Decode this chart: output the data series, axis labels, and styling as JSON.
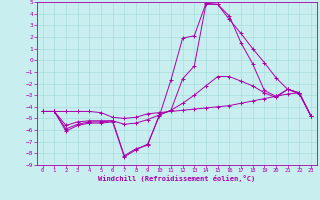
{
  "xlabel": "Windchill (Refroidissement éolien,°C)",
  "background_color": "#c8eef0",
  "grid_color": "#aadddd",
  "line_color": "#aa00aa",
  "xlim": [
    -0.5,
    23.5
  ],
  "ylim": [
    -9,
    5
  ],
  "xticks": [
    0,
    1,
    2,
    3,
    4,
    5,
    6,
    7,
    8,
    9,
    10,
    11,
    12,
    13,
    14,
    15,
    16,
    17,
    18,
    19,
    20,
    21,
    22,
    23
  ],
  "yticks": [
    5,
    4,
    3,
    2,
    1,
    0,
    -1,
    -2,
    -3,
    -4,
    -5,
    -6,
    -7,
    -8,
    -9
  ],
  "line1_x": [
    0,
    1,
    2,
    3,
    4,
    5,
    6,
    7,
    8,
    9,
    10,
    11,
    12,
    13,
    14,
    15,
    16,
    17,
    18,
    19,
    20,
    21,
    22,
    23
  ],
  "line1_y": [
    -4.4,
    -4.4,
    -4.4,
    -4.4,
    -4.4,
    -4.5,
    -4.9,
    -5.0,
    -4.9,
    -4.6,
    -4.5,
    -4.4,
    -4.3,
    -4.2,
    -4.1,
    -4.0,
    -3.9,
    -3.7,
    -3.5,
    -3.3,
    -3.1,
    -2.9,
    -2.8,
    -4.8
  ],
  "line2_x": [
    0,
    1,
    2,
    3,
    4,
    5,
    6,
    7,
    8,
    9,
    10,
    11,
    12,
    13,
    14,
    15,
    16,
    17,
    18,
    19,
    20,
    21,
    22,
    23
  ],
  "line2_y": [
    -4.4,
    -4.4,
    -5.6,
    -5.3,
    -5.2,
    -5.2,
    -5.2,
    -5.5,
    -5.4,
    -5.1,
    -4.7,
    -4.3,
    -3.7,
    -3.0,
    -2.2,
    -1.4,
    -1.4,
    -1.8,
    -2.2,
    -2.8,
    -3.2,
    -2.5,
    -2.8,
    -4.8
  ],
  "line3_x": [
    0,
    1,
    2,
    3,
    4,
    5,
    6,
    7,
    8,
    9,
    10,
    11,
    12,
    13,
    14,
    15,
    16,
    17,
    18,
    19,
    20,
    21,
    22,
    23
  ],
  "line3_y": [
    -4.4,
    -4.4,
    -5.9,
    -5.5,
    -5.3,
    -5.3,
    -5.2,
    -8.2,
    -7.6,
    -7.3,
    -4.7,
    -4.3,
    -1.6,
    -0.5,
    4.8,
    4.8,
    3.5,
    2.3,
    1.0,
    -0.2,
    -1.5,
    -2.5,
    -2.8,
    -4.8
  ],
  "line4_x": [
    0,
    1,
    2,
    3,
    4,
    5,
    6,
    7,
    8,
    9,
    10,
    11,
    12,
    13,
    14,
    15,
    16,
    17,
    18,
    19,
    20,
    21,
    22,
    23
  ],
  "line4_y": [
    -4.4,
    -4.4,
    -6.1,
    -5.6,
    -5.4,
    -5.4,
    -5.3,
    -8.3,
    -7.7,
    -7.2,
    -4.8,
    -1.7,
    1.9,
    2.1,
    4.9,
    4.8,
    3.8,
    1.5,
    -0.3,
    -2.6,
    -3.1,
    -2.5,
    -2.9,
    -4.8
  ]
}
